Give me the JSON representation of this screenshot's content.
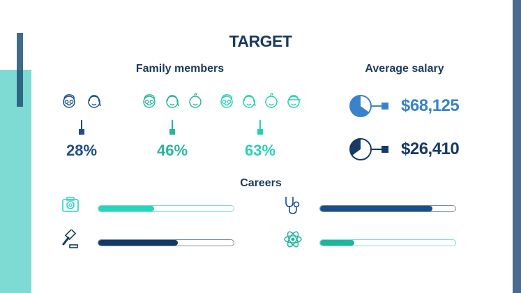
{
  "title": "TARGET",
  "family": {
    "heading": "Family members",
    "groups": [
      {
        "percent": "28%",
        "members": 2,
        "color": "#1d4f86"
      },
      {
        "percent": "46%",
        "members": 3,
        "color": "#2bb59e"
      },
      {
        "percent": "63%",
        "members": 4,
        "color": "#27d0b7"
      }
    ]
  },
  "salary": {
    "heading": "Average salary",
    "items": [
      {
        "value": "$68,125",
        "color": "#3a83cc",
        "pie_fraction": 0.65
      },
      {
        "value": "$26,410",
        "color": "#173a66",
        "pie_fraction": 0.35
      }
    ]
  },
  "careers": {
    "heading": "Careers",
    "items": [
      {
        "icon": "camera-icon",
        "progress": 0.41,
        "color": "#27d4bd"
      },
      {
        "icon": "gavel-icon",
        "progress": 0.59,
        "color": "#123a66"
      },
      {
        "icon": "stethoscope-icon",
        "progress": 0.83,
        "color": "#174f8a"
      },
      {
        "icon": "atom-icon",
        "progress": 0.25,
        "color": "#1fb59c"
      }
    ]
  }
}
